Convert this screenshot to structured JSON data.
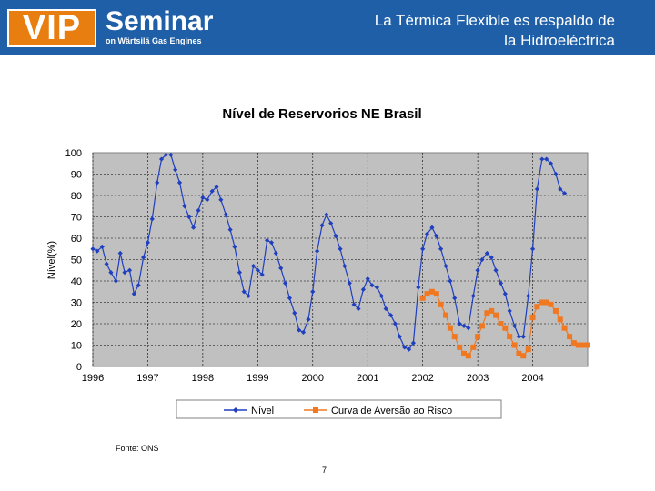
{
  "header": {
    "logo_vip": "VIP",
    "logo_seminar": "Seminar",
    "logo_subtitle": "on Wärtsilä Gas Engines",
    "title_line1": "La Térmica Flexible es respaldo de",
    "title_line2": "la Hidroeléctrica",
    "brand_color": "#1f5fa8",
    "accent_color": "#e87d10"
  },
  "footer": {
    "source": "Fonte: ONS",
    "page_number": "7"
  },
  "chart_data": {
    "type": "line",
    "title": "Nível de Reservorios NE Brasil",
    "xlabel": "",
    "ylabel": "Nível(%)",
    "ylim": [
      0,
      100
    ],
    "yticks": [
      "0",
      "10",
      "20",
      "30",
      "40",
      "50",
      "60",
      "70",
      "80",
      "90",
      "100"
    ],
    "xlim": [
      1996,
      2005
    ],
    "xticks": [
      "1996",
      "1997",
      "1998",
      "1999",
      "2000",
      "2001",
      "2002",
      "2003",
      "2004"
    ],
    "grid": true,
    "legend_position": "bottom",
    "series": [
      {
        "name": "Nível",
        "color": "#1f3fbf",
        "marker": "diamond",
        "x": [
          1996.0,
          1996.08,
          1996.17,
          1996.25,
          1996.33,
          1996.42,
          1996.5,
          1996.58,
          1996.67,
          1996.75,
          1996.83,
          1996.92,
          1997.0,
          1997.08,
          1997.17,
          1997.25,
          1997.33,
          1997.42,
          1997.5,
          1997.58,
          1997.67,
          1997.75,
          1997.83,
          1997.92,
          1998.0,
          1998.08,
          1998.17,
          1998.25,
          1998.33,
          1998.42,
          1998.5,
          1998.58,
          1998.67,
          1998.75,
          1998.83,
          1998.92,
          1999.0,
          1999.08,
          1999.17,
          1999.25,
          1999.33,
          1999.42,
          1999.5,
          1999.58,
          1999.67,
          1999.75,
          1999.83,
          1999.92,
          2000.0,
          2000.08,
          2000.17,
          2000.25,
          2000.33,
          2000.42,
          2000.5,
          2000.58,
          2000.67,
          2000.75,
          2000.83,
          2000.92,
          2001.0,
          2001.08,
          2001.17,
          2001.25,
          2001.33,
          2001.42,
          2001.5,
          2001.58,
          2001.67,
          2001.75,
          2001.83,
          2001.92,
          2002.0,
          2002.08,
          2002.17,
          2002.25,
          2002.33,
          2002.42,
          2002.5,
          2002.58,
          2002.67,
          2002.75,
          2002.83,
          2002.92,
          2003.0,
          2003.08,
          2003.17,
          2003.25,
          2003.33,
          2003.42,
          2003.5,
          2003.58,
          2003.67,
          2003.75,
          2003.83,
          2003.92,
          2004.0,
          2004.08,
          2004.17,
          2004.25,
          2004.33,
          2004.42,
          2004.5,
          2004.58
        ],
        "values": [
          55,
          54,
          56,
          48,
          44,
          40,
          53,
          44,
          45,
          34,
          38,
          51,
          58,
          69,
          86,
          97,
          99,
          99,
          92,
          86,
          75,
          70,
          65,
          73,
          79,
          78,
          82,
          84,
          78,
          71,
          64,
          56,
          44,
          35,
          33,
          47,
          45,
          43,
          59,
          58,
          53,
          46,
          39,
          32,
          25,
          17,
          16,
          22,
          35,
          54,
          66,
          71,
          67,
          61,
          55,
          47,
          39,
          29,
          27,
          36,
          41,
          38,
          37,
          33,
          27,
          24,
          20,
          14,
          9,
          8,
          11,
          37,
          55,
          62,
          65,
          61,
          55,
          47,
          40,
          32,
          20,
          19,
          18,
          33,
          45,
          50,
          53,
          51,
          45,
          39,
          34,
          26,
          19,
          14,
          14,
          33,
          55,
          83,
          97,
          97,
          95,
          90,
          83,
          81
        ]
      },
      {
        "name": "Curva de Aversão ao Risco",
        "color": "#f07820",
        "marker": "square",
        "x": [
          2002.0,
          2002.08,
          2002.17,
          2002.25,
          2002.33,
          2002.42,
          2002.5,
          2002.58,
          2002.67,
          2002.75,
          2002.83,
          2002.92,
          2003.0,
          2003.08,
          2003.17,
          2003.25,
          2003.33,
          2003.42,
          2003.5,
          2003.58,
          2003.67,
          2003.75,
          2003.83,
          2003.92,
          2004.0,
          2004.08,
          2004.17,
          2004.25,
          2004.33,
          2004.42,
          2004.5,
          2004.58,
          2004.67,
          2004.75,
          2004.83,
          2004.92,
          2005.0
        ],
        "values": [
          32,
          34,
          35,
          34,
          29,
          24,
          18,
          14,
          9,
          6,
          5,
          9,
          14,
          19,
          25,
          26,
          24,
          20,
          18,
          14,
          10,
          6,
          5,
          8,
          23,
          28,
          30,
          30,
          29,
          26,
          22,
          18,
          14,
          11,
          10,
          10,
          10
        ]
      }
    ]
  }
}
